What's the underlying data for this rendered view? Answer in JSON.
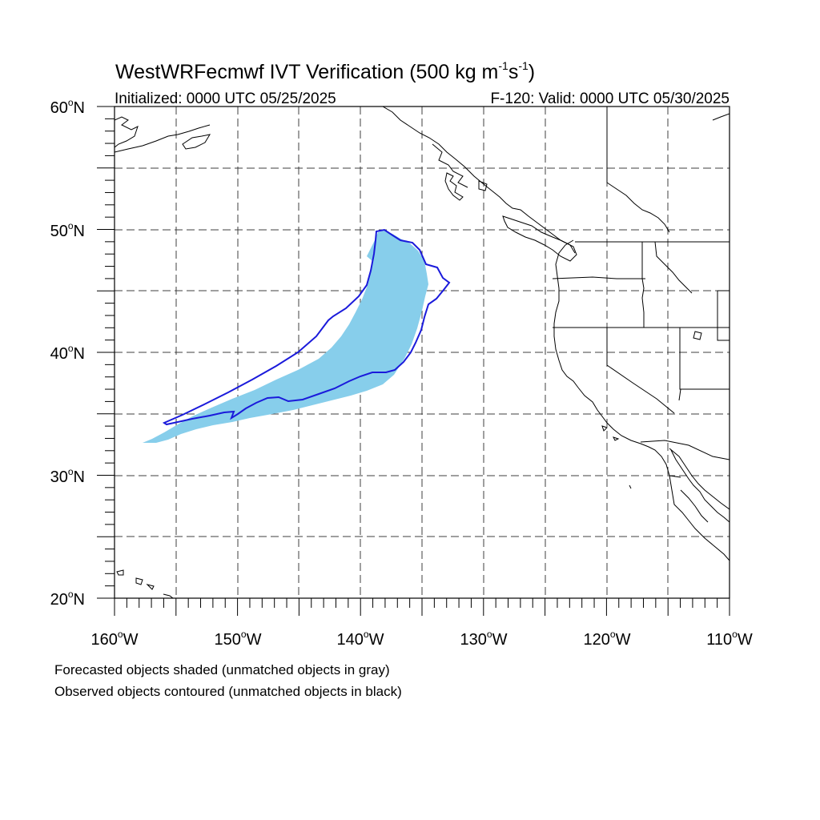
{
  "title": {
    "main": "WestWRFecmwf IVT Verification (500 kg m",
    "exp1": "-1",
    "mid": "s",
    "exp2": "-1",
    "close": ")"
  },
  "subtitle": {
    "left": "Initialized: 0000 UTC 05/25/2025",
    "right": "F-120: Valid: 0000 UTC 05/30/2025"
  },
  "lat_labels": [
    {
      "deg": "60",
      "hemi": "N"
    },
    {
      "deg": "50",
      "hemi": "N"
    },
    {
      "deg": "40",
      "hemi": "N"
    },
    {
      "deg": "30",
      "hemi": "N"
    },
    {
      "deg": "20",
      "hemi": "N"
    }
  ],
  "lon_labels": [
    {
      "deg": "160",
      "hemi": "W"
    },
    {
      "deg": "150",
      "hemi": "W"
    },
    {
      "deg": "140",
      "hemi": "W"
    },
    {
      "deg": "130",
      "hemi": "W"
    },
    {
      "deg": "120",
      "hemi": "W"
    },
    {
      "deg": "110",
      "hemi": "W"
    }
  ],
  "deg_symbol": "o",
  "footer": {
    "line1": "Forecasted objects shaded (unmatched objects in gray)",
    "line2": "Observed objects contoured (unmatched objects in black)"
  },
  "colors": {
    "forecast_fill": "#87ceeb",
    "observed_contour": "#1a1adb",
    "coastline": "#000000",
    "grid": "#000000"
  }
}
